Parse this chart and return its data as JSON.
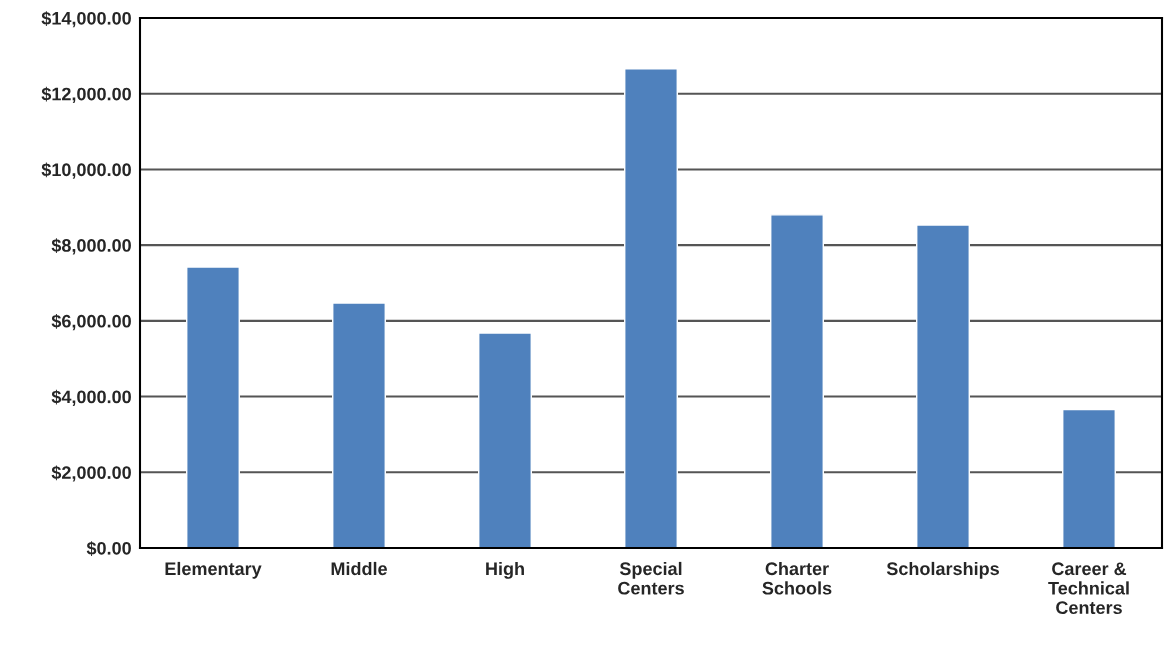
{
  "chart_data": {
    "type": "bar",
    "categories": [
      "Elementary",
      "Middle",
      "High",
      "Special\nCenters",
      "Charter\nSchools",
      "Scholarships",
      "Career &\nTechnical\nCenters"
    ],
    "values": [
      7420,
      6470,
      5680,
      12660,
      8800,
      8530,
      3660
    ],
    "color": "#4f81bd",
    "ylim": [
      0,
      14000
    ],
    "yticks": [
      {
        "value": 0,
        "label": "$0.00"
      },
      {
        "value": 2000,
        "label": "$2,000.00"
      },
      {
        "value": 4000,
        "label": "$4,000.00"
      },
      {
        "value": 6000,
        "label": "$6,000.00"
      },
      {
        "value": 8000,
        "label": "$8,000.00"
      },
      {
        "value": 10000,
        "label": "$10,000.00"
      },
      {
        "value": 12000,
        "label": "$12,000.00"
      },
      {
        "value": 14000,
        "label": "$14,000.00"
      }
    ],
    "grid": "y"
  }
}
